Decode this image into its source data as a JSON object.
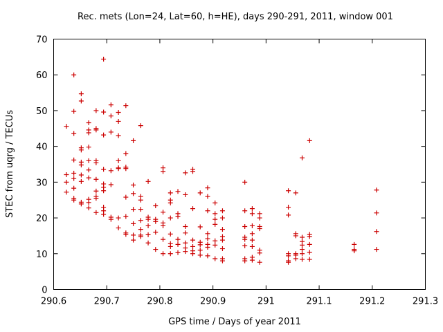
{
  "chart_data": {
    "type": "scatter",
    "title": "Rec. mets (Lon=24, Lat=60, h=HE), days 290-291, 2011, window 001",
    "xlabel": "GPS time / Days of year 2011",
    "ylabel": "STEC from uqrg / TECUs",
    "xlim": [
      290.6,
      291.3
    ],
    "ylim": [
      0,
      70
    ],
    "xticks": [
      290.6,
      290.7,
      290.8,
      290.9,
      291.0,
      291.1,
      291.2,
      291.3
    ],
    "xtick_labels": [
      "290.6",
      "290.7",
      "290.8",
      "290.9",
      "291",
      "291.1",
      "291.2",
      "291.3"
    ],
    "yticks": [
      0,
      10,
      20,
      30,
      40,
      50,
      60,
      70
    ],
    "ytick_labels": [
      "0",
      "10",
      "20",
      "30",
      "40",
      "50",
      "60",
      "70"
    ],
    "marker": "plus",
    "marker_color": "#cc0000",
    "grid": false,
    "points": [
      [
        290.624,
        45.6
      ],
      [
        290.624,
        32.1
      ],
      [
        290.624,
        30.0
      ],
      [
        290.624,
        27.2
      ],
      [
        290.638,
        60.0
      ],
      [
        290.638,
        49.8
      ],
      [
        290.638,
        43.6
      ],
      [
        290.638,
        36.2
      ],
      [
        290.638,
        32.5
      ],
      [
        290.638,
        31.0
      ],
      [
        290.638,
        28.3
      ],
      [
        290.638,
        25.5
      ],
      [
        290.638,
        25.0
      ],
      [
        290.652,
        54.7
      ],
      [
        290.652,
        52.7
      ],
      [
        290.652,
        39.6
      ],
      [
        290.652,
        39.0
      ],
      [
        290.652,
        35.6
      ],
      [
        290.652,
        34.8
      ],
      [
        290.652,
        32.0
      ],
      [
        290.652,
        30.2
      ],
      [
        290.652,
        24.4
      ],
      [
        290.652,
        23.9
      ],
      [
        290.666,
        46.6
      ],
      [
        290.666,
        44.6
      ],
      [
        290.666,
        43.8
      ],
      [
        290.666,
        39.8
      ],
      [
        290.666,
        36.0
      ],
      [
        290.666,
        33.4
      ],
      [
        290.666,
        31.2
      ],
      [
        290.666,
        25.2
      ],
      [
        290.666,
        24.3
      ],
      [
        290.666,
        22.8
      ],
      [
        290.68,
        50.0
      ],
      [
        290.68,
        45.0
      ],
      [
        290.68,
        44.6
      ],
      [
        290.68,
        36.0
      ],
      [
        290.68,
        35.4
      ],
      [
        290.68,
        30.8
      ],
      [
        290.68,
        27.5
      ],
      [
        290.68,
        26.0
      ],
      [
        290.68,
        25.5
      ],
      [
        290.68,
        21.5
      ],
      [
        290.694,
        64.4
      ],
      [
        290.694,
        49.6
      ],
      [
        290.694,
        43.2
      ],
      [
        290.694,
        33.6
      ],
      [
        290.694,
        29.5
      ],
      [
        290.694,
        28.6
      ],
      [
        290.694,
        27.6
      ],
      [
        290.694,
        23.0
      ],
      [
        290.694,
        22.0
      ],
      [
        290.694,
        21.0
      ],
      [
        290.708,
        51.6
      ],
      [
        290.708,
        48.5
      ],
      [
        290.708,
        44.0
      ],
      [
        290.708,
        33.2
      ],
      [
        290.708,
        29.3
      ],
      [
        290.708,
        20.2
      ],
      [
        290.708,
        19.6
      ],
      [
        290.722,
        49.5
      ],
      [
        290.722,
        47.0
      ],
      [
        290.722,
        43.0
      ],
      [
        290.722,
        36.0
      ],
      [
        290.722,
        34.0
      ],
      [
        290.722,
        33.8
      ],
      [
        290.722,
        20.0
      ],
      [
        290.722,
        17.2
      ],
      [
        290.736,
        51.4
      ],
      [
        290.736,
        38.0
      ],
      [
        290.736,
        34.2
      ],
      [
        290.736,
        33.8
      ],
      [
        290.736,
        25.8
      ],
      [
        290.736,
        20.4
      ],
      [
        290.736,
        15.8
      ],
      [
        290.736,
        15.4
      ],
      [
        290.75,
        41.6
      ],
      [
        290.75,
        29.2
      ],
      [
        290.75,
        26.8
      ],
      [
        290.75,
        22.4
      ],
      [
        290.75,
        18.4
      ],
      [
        290.75,
        15.2
      ],
      [
        290.75,
        13.8
      ],
      [
        290.764,
        45.8
      ],
      [
        290.764,
        26.0
      ],
      [
        290.764,
        25.0
      ],
      [
        290.764,
        22.4
      ],
      [
        290.764,
        19.3
      ],
      [
        290.764,
        16.8
      ],
      [
        290.764,
        15.2
      ],
      [
        290.764,
        14.8
      ],
      [
        290.778,
        30.2
      ],
      [
        290.778,
        20.2
      ],
      [
        290.778,
        19.6
      ],
      [
        290.778,
        17.8
      ],
      [
        290.778,
        15.3
      ],
      [
        290.778,
        13.0
      ],
      [
        290.792,
        23.4
      ],
      [
        290.792,
        19.6
      ],
      [
        290.792,
        19.0
      ],
      [
        290.792,
        16.0
      ],
      [
        290.792,
        11.2
      ],
      [
        290.806,
        34.0
      ],
      [
        290.806,
        33.0
      ],
      [
        290.806,
        21.6
      ],
      [
        290.806,
        18.6
      ],
      [
        290.806,
        17.8
      ],
      [
        290.806,
        14.0
      ],
      [
        290.806,
        10.0
      ],
      [
        290.82,
        27.0
      ],
      [
        290.82,
        25.0
      ],
      [
        290.82,
        24.2
      ],
      [
        290.82,
        20.0
      ],
      [
        290.82,
        15.5
      ],
      [
        290.82,
        12.8
      ],
      [
        290.82,
        12.0
      ],
      [
        290.82,
        10.0
      ],
      [
        290.834,
        27.4
      ],
      [
        290.834,
        21.2
      ],
      [
        290.834,
        20.4
      ],
      [
        290.834,
        14.0
      ],
      [
        290.834,
        12.6
      ],
      [
        290.834,
        10.3
      ],
      [
        290.848,
        32.6
      ],
      [
        290.848,
        26.5
      ],
      [
        290.848,
        17.6
      ],
      [
        290.848,
        15.8
      ],
      [
        290.848,
        13.0
      ],
      [
        290.848,
        11.6
      ],
      [
        290.848,
        10.6
      ],
      [
        290.862,
        33.6
      ],
      [
        290.862,
        33.0
      ],
      [
        290.862,
        22.6
      ],
      [
        290.862,
        13.8
      ],
      [
        290.862,
        12.0
      ],
      [
        290.862,
        10.8
      ],
      [
        290.862,
        10.0
      ],
      [
        290.876,
        27.0
      ],
      [
        290.876,
        17.5
      ],
      [
        290.876,
        13.2
      ],
      [
        290.876,
        12.5
      ],
      [
        290.876,
        11.0
      ],
      [
        290.876,
        9.6
      ],
      [
        290.89,
        28.4
      ],
      [
        290.89,
        26.0
      ],
      [
        290.89,
        22.0
      ],
      [
        290.89,
        15.6
      ],
      [
        290.89,
        14.2
      ],
      [
        290.89,
        12.6
      ],
      [
        290.89,
        11.8
      ],
      [
        290.89,
        9.4
      ],
      [
        290.904,
        24.2
      ],
      [
        290.904,
        21.2
      ],
      [
        290.904,
        19.6
      ],
      [
        290.904,
        18.2
      ],
      [
        290.904,
        13.6
      ],
      [
        290.904,
        12.4
      ],
      [
        290.904,
        8.6
      ],
      [
        290.918,
        22.0
      ],
      [
        290.918,
        20.0
      ],
      [
        290.918,
        16.8
      ],
      [
        290.918,
        14.8
      ],
      [
        290.918,
        13.8
      ],
      [
        290.918,
        11.4
      ],
      [
        290.918,
        8.6
      ],
      [
        290.918,
        8.0
      ],
      [
        290.96,
        30.0
      ],
      [
        290.96,
        22.0
      ],
      [
        290.96,
        17.6
      ],
      [
        290.96,
        14.6
      ],
      [
        290.96,
        14.0
      ],
      [
        290.96,
        12.2
      ],
      [
        290.96,
        8.6
      ],
      [
        290.96,
        8.0
      ],
      [
        290.974,
        22.6
      ],
      [
        290.974,
        21.2
      ],
      [
        290.974,
        17.8
      ],
      [
        290.974,
        15.6
      ],
      [
        290.974,
        13.8
      ],
      [
        290.974,
        12.0
      ],
      [
        290.974,
        9.0
      ],
      [
        290.974,
        8.2
      ],
      [
        290.988,
        21.2
      ],
      [
        290.988,
        20.0
      ],
      [
        290.988,
        17.6
      ],
      [
        290.988,
        17.0
      ],
      [
        290.988,
        11.0
      ],
      [
        290.988,
        10.2
      ],
      [
        290.988,
        7.6
      ],
      [
        291.042,
        27.6
      ],
      [
        291.042,
        23.0
      ],
      [
        291.042,
        20.8
      ],
      [
        291.042,
        10.0
      ],
      [
        291.042,
        9.4
      ],
      [
        291.042,
        8.0
      ],
      [
        291.042,
        7.6
      ],
      [
        291.056,
        27.0
      ],
      [
        291.056,
        15.6
      ],
      [
        291.056,
        15.0
      ],
      [
        291.056,
        10.0
      ],
      [
        291.056,
        9.6
      ],
      [
        291.056,
        8.6
      ],
      [
        291.068,
        36.8
      ],
      [
        291.068,
        14.6
      ],
      [
        291.068,
        13.4
      ],
      [
        291.068,
        12.4
      ],
      [
        291.068,
        11.2
      ],
      [
        291.068,
        10.0
      ],
      [
        291.068,
        8.4
      ],
      [
        291.082,
        41.6
      ],
      [
        291.082,
        15.4
      ],
      [
        291.082,
        14.8
      ],
      [
        291.082,
        12.6
      ],
      [
        291.082,
        10.4
      ],
      [
        291.082,
        8.4
      ],
      [
        291.166,
        12.6
      ],
      [
        291.166,
        11.2
      ],
      [
        291.166,
        10.8
      ],
      [
        291.208,
        27.8
      ],
      [
        291.208,
        21.4
      ],
      [
        291.208,
        16.2
      ],
      [
        291.208,
        11.2
      ]
    ]
  }
}
